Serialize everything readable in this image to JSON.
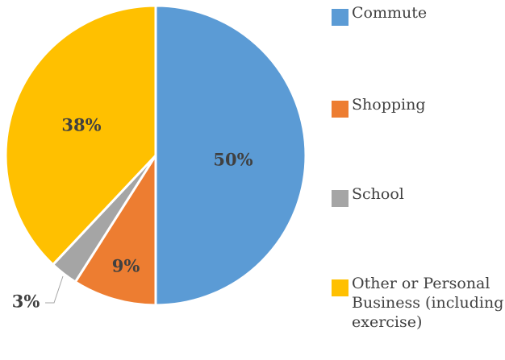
{
  "chart_data": {
    "type": "pie",
    "title": "",
    "categories": [
      "Commute",
      "Shopping",
      "School",
      "Other or Personal Business (including exercise)"
    ],
    "values": [
      50,
      9,
      3,
      38
    ],
    "value_labels": [
      "50%",
      "9%",
      "3%",
      "38%"
    ],
    "colors": [
      "#5b9bd5",
      "#ed7d31",
      "#a5a5a5",
      "#ffc000"
    ],
    "legend": {
      "position": "right",
      "items": [
        {
          "label": "Commute",
          "color": "#5b9bd5"
        },
        {
          "label": "Shopping",
          "color": "#ed7d31"
        },
        {
          "label": "School",
          "color": "#a5a5a5"
        },
        {
          "label": "Other or Personal Business (including exercise)",
          "color": "#ffc000"
        }
      ]
    }
  }
}
